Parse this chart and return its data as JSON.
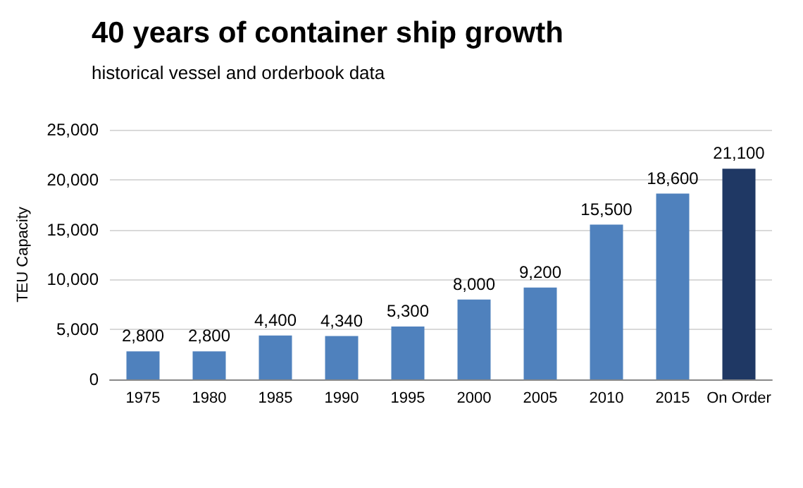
{
  "chart_data": {
    "type": "bar",
    "title": "40 years of container ship growth",
    "subtitle": "historical vessel and orderbook data",
    "ylabel": "TEU Capacity",
    "categories": [
      "1975",
      "1980",
      "1985",
      "1990",
      "1995",
      "2000",
      "2005",
      "2010",
      "2015",
      "On Order"
    ],
    "values": [
      2800,
      2800,
      4400,
      4340,
      5300,
      8000,
      9200,
      15500,
      18600,
      21100
    ],
    "value_labels": [
      "2,800",
      "2,800",
      "4,400",
      "4,340",
      "5,300",
      "8,000",
      "9,200",
      "15,500",
      "18,600",
      "21,100"
    ],
    "colors": [
      "#4f81bd",
      "#4f81bd",
      "#4f81bd",
      "#4f81bd",
      "#4f81bd",
      "#4f81bd",
      "#4f81bd",
      "#4f81bd",
      "#4f81bd",
      "#1f3864"
    ],
    "ylim": [
      0,
      25000
    ],
    "yticks": [
      0,
      {
        "value": 5000,
        "label": "5,000"
      },
      {
        "value": 10000,
        "label": "10,000"
      },
      {
        "value": 15000,
        "label": "15,000"
      },
      {
        "value": 20000,
        "label": "20,000"
      },
      {
        "value": 25000,
        "label": "25,000"
      }
    ],
    "grid": "y"
  }
}
